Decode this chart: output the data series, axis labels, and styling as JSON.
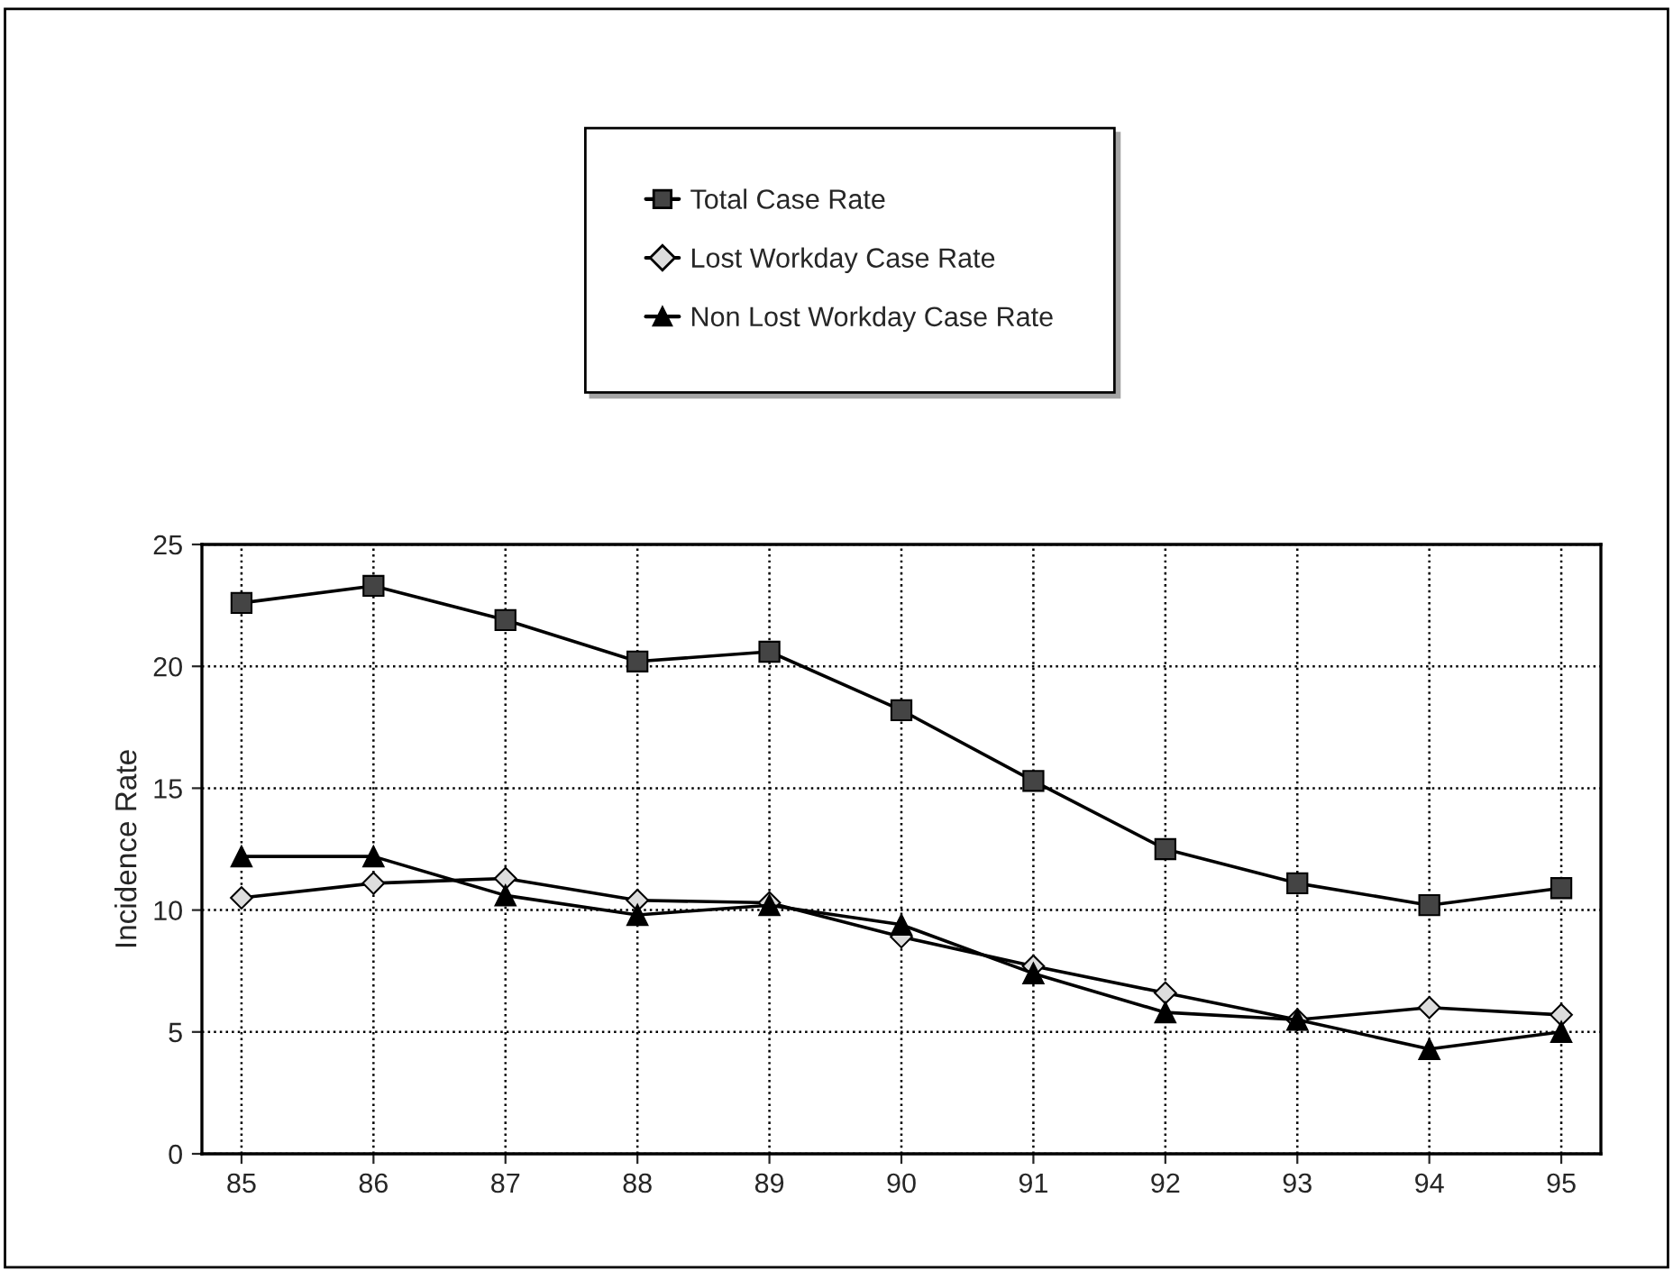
{
  "chart_data": {
    "type": "line",
    "ylabel": "Incidence Rate",
    "categories": [
      "85",
      "86",
      "87",
      "88",
      "89",
      "90",
      "91",
      "92",
      "93",
      "94",
      "95"
    ],
    "series": [
      {
        "name": "Total Case Rate",
        "color": "#000000",
        "marker": "square",
        "values": [
          22.6,
          23.3,
          21.9,
          20.2,
          20.6,
          18.2,
          15.3,
          12.5,
          11.1,
          10.2,
          10.9
        ]
      },
      {
        "name": "Lost Workday Case Rate",
        "color": "#000000",
        "marker": "diamond",
        "values": [
          10.5,
          11.1,
          11.3,
          10.4,
          10.3,
          8.9,
          7.7,
          6.6,
          5.5,
          6.0,
          5.7
        ]
      },
      {
        "name": "Non Lost Workday Case Rate",
        "color": "#000000",
        "marker": "triangle",
        "values": [
          12.2,
          12.2,
          10.6,
          9.8,
          10.2,
          9.4,
          7.4,
          5.8,
          5.5,
          4.3,
          5.0
        ]
      }
    ],
    "ylim": [
      0,
      25
    ],
    "yticks": [
      0,
      5,
      10,
      15,
      20,
      25
    ],
    "grid": true,
    "legend": "top",
    "line_style": "solid"
  }
}
